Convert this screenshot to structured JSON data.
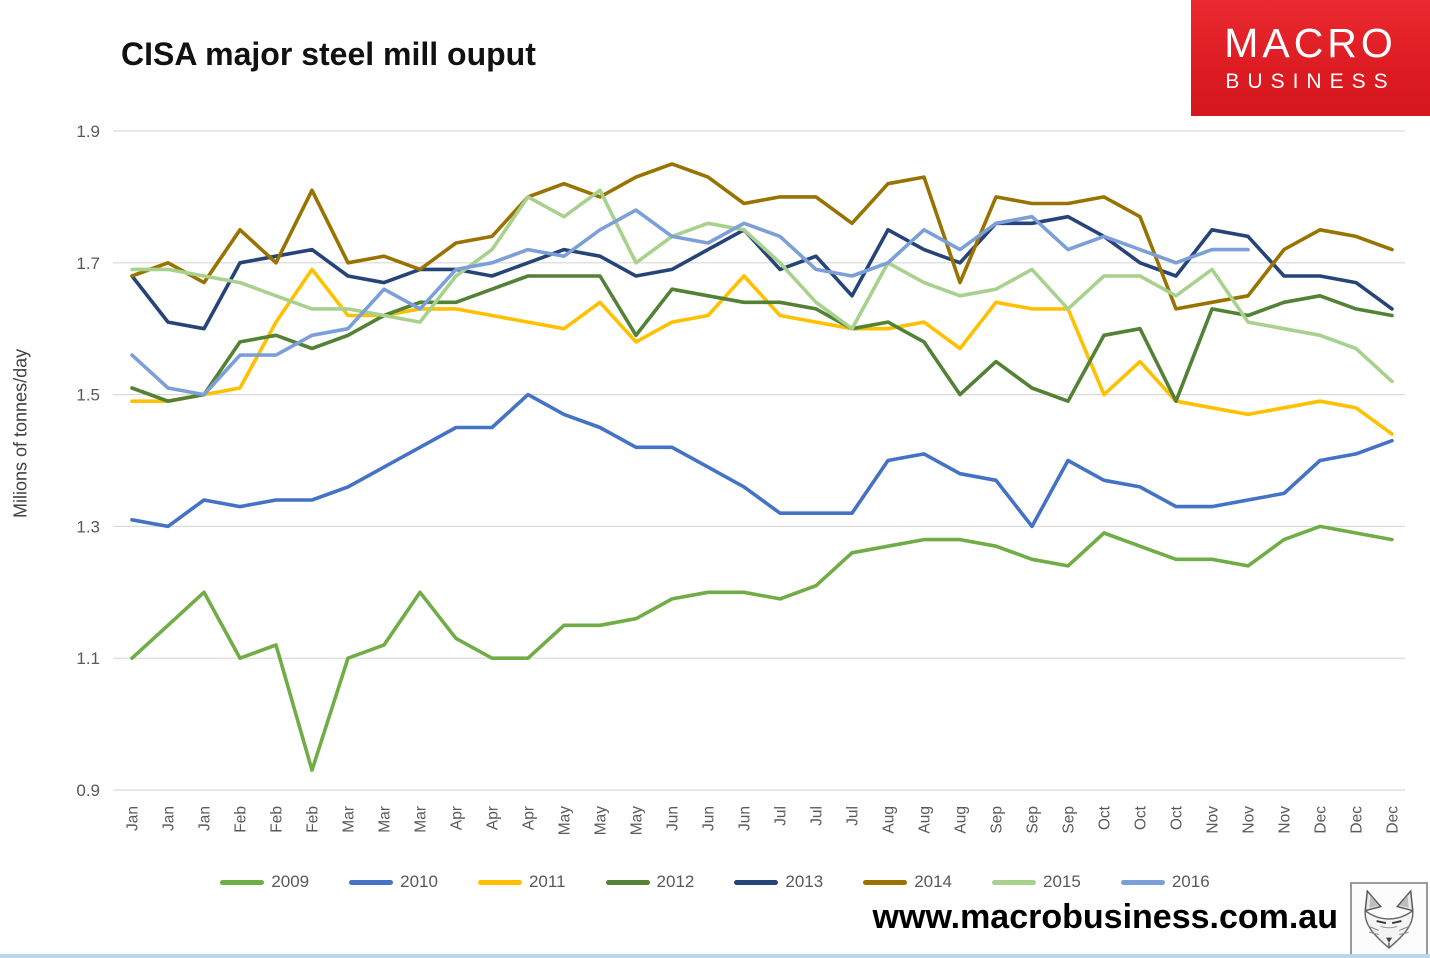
{
  "header": {
    "title": "CISA major steel mill ouput",
    "logo": {
      "line1": "MACRO",
      "line2": "BUSINESS",
      "bg_color": "#dd1b22",
      "text_color": "#ffffff"
    }
  },
  "footer": {
    "url": "www.macrobusiness.com.au",
    "wolf_logo": "fox-sketch-icon"
  },
  "chart_data": {
    "type": "line",
    "title": "CISA major steel mill ouput",
    "xlabel": "",
    "ylabel": "Milions of tonnes/day",
    "ylim": [
      0.9,
      1.9
    ],
    "yticks": [
      0.9,
      1.1,
      1.3,
      1.5,
      1.7,
      1.9
    ],
    "grid": "horizontal",
    "gridline_color": "#d9d9d9",
    "tick_label_color": "#595959",
    "legend_position": "bottom",
    "categories": [
      "Jan",
      "Jan",
      "Jan",
      "Feb",
      "Feb",
      "Feb",
      "Mar",
      "Mar",
      "Mar",
      "Apr",
      "Apr",
      "Apr",
      "May",
      "May",
      "May",
      "Jun",
      "Jun",
      "Jun",
      "Jul",
      "Jul",
      "Jul",
      "Aug",
      "Aug",
      "Aug",
      "Sep",
      "Sep",
      "Sep",
      "Oct",
      "Oct",
      "Oct",
      "Nov",
      "Nov",
      "Nov",
      "Dec",
      "Dec",
      "Dec"
    ],
    "series": [
      {
        "name": "2009",
        "color": "#70ad47",
        "values": [
          1.1,
          1.15,
          1.2,
          1.1,
          1.12,
          0.93,
          1.1,
          1.12,
          1.2,
          1.13,
          1.1,
          1.1,
          1.15,
          1.15,
          1.16,
          1.19,
          1.2,
          1.2,
          1.19,
          1.21,
          1.26,
          1.27,
          1.28,
          1.28,
          1.27,
          1.25,
          1.24,
          1.29,
          1.27,
          1.25,
          1.25,
          1.24,
          1.28,
          1.3,
          1.29,
          1.28
        ]
      },
      {
        "name": "2010",
        "color": "#4472c4",
        "values": [
          1.31,
          1.3,
          1.34,
          1.33,
          1.34,
          1.34,
          1.36,
          1.39,
          1.42,
          1.45,
          1.45,
          1.5,
          1.47,
          1.45,
          1.42,
          1.42,
          1.39,
          1.36,
          1.32,
          1.32,
          1.32,
          1.4,
          1.41,
          1.38,
          1.37,
          1.3,
          1.4,
          1.37,
          1.36,
          1.33,
          1.33,
          1.34,
          1.35,
          1.4,
          1.41,
          1.43
        ]
      },
      {
        "name": "2011",
        "color": "#ffc000",
        "values": [
          1.49,
          1.49,
          1.5,
          1.51,
          1.61,
          1.69,
          1.62,
          1.62,
          1.63,
          1.63,
          1.62,
          1.61,
          1.6,
          1.64,
          1.58,
          1.61,
          1.62,
          1.68,
          1.62,
          1.61,
          1.6,
          1.6,
          1.61,
          1.57,
          1.64,
          1.63,
          1.63,
          1.5,
          1.55,
          1.49,
          1.48,
          1.47,
          1.48,
          1.49,
          1.48,
          1.44
        ]
      },
      {
        "name": "2012",
        "color": "#538135",
        "values": [
          1.51,
          1.49,
          1.5,
          1.58,
          1.59,
          1.57,
          1.59,
          1.62,
          1.64,
          1.64,
          1.66,
          1.68,
          1.68,
          1.68,
          1.59,
          1.66,
          1.65,
          1.64,
          1.64,
          1.63,
          1.6,
          1.61,
          1.58,
          1.5,
          1.55,
          1.51,
          1.49,
          1.59,
          1.6,
          1.49,
          1.63,
          1.62,
          1.64,
          1.65,
          1.63,
          1.62
        ]
      },
      {
        "name": "2013",
        "color": "#264478",
        "values": [
          1.68,
          1.61,
          1.6,
          1.7,
          1.71,
          1.72,
          1.68,
          1.67,
          1.69,
          1.69,
          1.68,
          1.7,
          1.72,
          1.71,
          1.68,
          1.69,
          1.72,
          1.75,
          1.69,
          1.71,
          1.65,
          1.75,
          1.72,
          1.7,
          1.76,
          1.76,
          1.77,
          1.74,
          1.7,
          1.68,
          1.75,
          1.74,
          1.68,
          1.68,
          1.67,
          1.63
        ]
      },
      {
        "name": "2014",
        "color": "#997300",
        "values": [
          1.68,
          1.7,
          1.67,
          1.75,
          1.7,
          1.81,
          1.7,
          1.71,
          1.69,
          1.73,
          1.74,
          1.8,
          1.82,
          1.8,
          1.83,
          1.85,
          1.83,
          1.79,
          1.8,
          1.8,
          1.76,
          1.82,
          1.83,
          1.67,
          1.8,
          1.79,
          1.79,
          1.8,
          1.77,
          1.63,
          1.64,
          1.65,
          1.72,
          1.75,
          1.74,
          1.72
        ]
      },
      {
        "name": "2015",
        "color": "#a9d18e",
        "values": [
          1.69,
          1.69,
          1.68,
          1.67,
          1.65,
          1.63,
          1.63,
          1.62,
          1.61,
          1.68,
          1.72,
          1.8,
          1.77,
          1.81,
          1.7,
          1.74,
          1.76,
          1.75,
          1.7,
          1.64,
          1.6,
          1.7,
          1.67,
          1.65,
          1.66,
          1.69,
          1.63,
          1.68,
          1.68,
          1.65,
          1.69,
          1.61,
          1.6,
          1.59,
          1.57,
          1.52
        ]
      },
      {
        "name": "2016",
        "color": "#7c9fd9",
        "values": [
          1.56,
          1.51,
          1.5,
          1.56,
          1.56,
          1.59,
          1.6,
          1.66,
          1.63,
          1.69,
          1.7,
          1.72,
          1.71,
          1.75,
          1.78,
          1.74,
          1.73,
          1.76,
          1.74,
          1.69,
          1.68,
          1.7,
          1.75,
          1.72,
          1.76,
          1.77,
          1.72,
          1.74,
          1.72,
          1.7,
          1.72,
          1.72,
          null,
          null,
          null,
          null
        ]
      }
    ]
  }
}
